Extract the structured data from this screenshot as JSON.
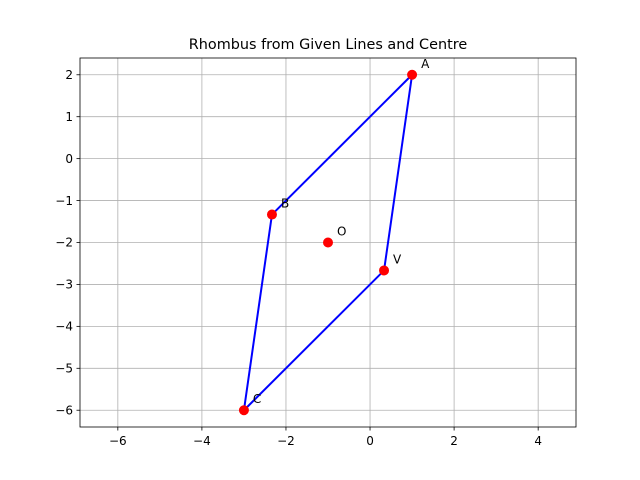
{
  "chart_data": {
    "type": "scatter",
    "title": "Rhombus from Given Lines and Centre",
    "xlabel": "",
    "ylabel": "",
    "xlim": [
      -6.9,
      4.9
    ],
    "ylim": [
      -6.4,
      2.4
    ],
    "xticks": [
      -6,
      -4,
      -2,
      0,
      2,
      4
    ],
    "yticks": [
      -6,
      -5,
      -4,
      -3,
      -2,
      -1,
      0,
      1,
      2
    ],
    "grid": true,
    "colors": {
      "polygon": "#0000ff",
      "points": "#ff0000",
      "grid": "#b0b0b0"
    },
    "polygon": {
      "vertices": [
        {
          "x": 1,
          "y": 2
        },
        {
          "x": -2.333,
          "y": -1.333
        },
        {
          "x": -3,
          "y": -6
        },
        {
          "x": 0.333,
          "y": -2.667
        }
      ],
      "closed": true
    },
    "points": [
      {
        "label": "A",
        "x": 1,
        "y": 2
      },
      {
        "label": "B",
        "x": -2.333,
        "y": -1.333
      },
      {
        "label": "C",
        "x": -3,
        "y": -6
      },
      {
        "label": "V",
        "x": 0.333,
        "y": -2.667
      },
      {
        "label": "O",
        "x": -1,
        "y": -2
      }
    ]
  }
}
